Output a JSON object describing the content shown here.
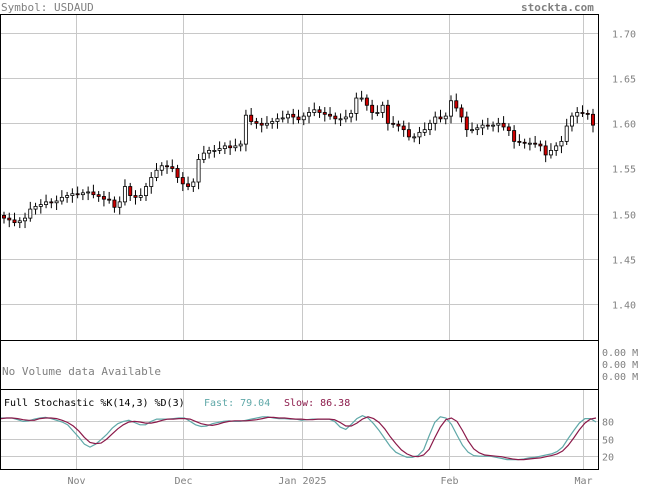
{
  "header": {
    "symbol_text": "Symbol: USDAUD",
    "site": "stockta.com"
  },
  "volume_panel": {
    "message": "No Volume data Available",
    "labels": [
      "0.00 M",
      "0.00 M",
      "0.00 M"
    ]
  },
  "stochastic_panel": {
    "title": "Full Stochastic %K(14,3) %D(3)",
    "fast_label": "Fast: 79.04",
    "slow_label": "Slow: 86.38",
    "fast_color": "#5fa8a8",
    "slow_color": "#8b1a4a",
    "y_ticks": [
      "80",
      "50",
      "20"
    ]
  },
  "colors": {
    "up_candle": "#ffffff",
    "down_candle": "#cc0000",
    "grid": "#c8c8c8"
  },
  "chart_data": {
    "type": "candlestick",
    "x_ticks": [
      "Nov",
      "Dec",
      "Jan 2025",
      "Feb",
      "Mar"
    ],
    "y_ticks": [
      "1.70",
      "1.65",
      "1.60",
      "1.55",
      "1.50",
      "1.45",
      "1.40"
    ],
    "ylim": [
      1.36,
      1.72
    ],
    "grid": true,
    "close": [
      1.495,
      1.493,
      1.49,
      1.492,
      1.495,
      1.505,
      1.508,
      1.51,
      1.513,
      1.512,
      1.514,
      1.518,
      1.52,
      1.522,
      1.521,
      1.523,
      1.524,
      1.521,
      1.519,
      1.516,
      1.515,
      1.507,
      1.513,
      1.53,
      1.52,
      1.518,
      1.52,
      1.53,
      1.54,
      1.548,
      1.553,
      1.552,
      1.55,
      1.54,
      1.533,
      1.53,
      1.535,
      1.56,
      1.567,
      1.57,
      1.57,
      1.572,
      1.575,
      1.573,
      1.575,
      1.577,
      1.609,
      1.602,
      1.6,
      1.598,
      1.6,
      1.602,
      1.605,
      1.606,
      1.61,
      1.607,
      1.604,
      1.608,
      1.612,
      1.615,
      1.612,
      1.61,
      1.608,
      1.605,
      1.605,
      1.607,
      1.611,
      1.628,
      1.628,
      1.62,
      1.612,
      1.612,
      1.62,
      1.6,
      1.599,
      1.597,
      1.593,
      1.585,
      1.585,
      1.59,
      1.593,
      1.6,
      1.607,
      1.605,
      1.608,
      1.625,
      1.617,
      1.607,
      1.593,
      1.593,
      1.595,
      1.598,
      1.597,
      1.598,
      1.6,
      1.596,
      1.592,
      1.58,
      1.579,
      1.578,
      1.578,
      1.577,
      1.575,
      1.565,
      1.57,
      1.575,
      1.58,
      1.597,
      1.608,
      1.612,
      1.611,
      1.61,
      1.598
    ],
    "stoch_fast": [
      86,
      86,
      86,
      83,
      80,
      81,
      84,
      86,
      87,
      85,
      82,
      79,
      74,
      63,
      52,
      40,
      35,
      40,
      48,
      57,
      68,
      76,
      80,
      82,
      78,
      74,
      74,
      80,
      84,
      84,
      84,
      85,
      86,
      86,
      80,
      74,
      71,
      72,
      76,
      78,
      80,
      81,
      80,
      80,
      82,
      84,
      86,
      88,
      88,
      86,
      85,
      85,
      84,
      84,
      82,
      83,
      84,
      84,
      84,
      84,
      80,
      70,
      66,
      75,
      85,
      90,
      86,
      76,
      64,
      50,
      36,
      26,
      21,
      17,
      17,
      20,
      30,
      55,
      78,
      88,
      86,
      75,
      56,
      38,
      26,
      20,
      19,
      19,
      19,
      17,
      15,
      13,
      13,
      13,
      14,
      16,
      17,
      19,
      21,
      23,
      27,
      35,
      50,
      64,
      77,
      85,
      85,
      79
    ],
    "stoch_slow": [
      85,
      86,
      86,
      85,
      83,
      82,
      82,
      85,
      86,
      86,
      85,
      82,
      78,
      72,
      63,
      52,
      43,
      41,
      42,
      49,
      58,
      67,
      74,
      79,
      80,
      79,
      77,
      77,
      79,
      82,
      84,
      84,
      85,
      85,
      84,
      80,
      76,
      74,
      73,
      75,
      78,
      80,
      81,
      81,
      81,
      82,
      83,
      85,
      87,
      87,
      86,
      86,
      85,
      84,
      84,
      83,
      83,
      84,
      84,
      84,
      83,
      78,
      72,
      72,
      77,
      84,
      88,
      85,
      78,
      67,
      53,
      41,
      30,
      23,
      19,
      18,
      21,
      31,
      51,
      70,
      83,
      86,
      80,
      64,
      46,
      32,
      25,
      21,
      20,
      19,
      18,
      16,
      14,
      13,
      13,
      14,
      15,
      16,
      18,
      20,
      23,
      28,
      38,
      51,
      65,
      77,
      84,
      86
    ]
  }
}
